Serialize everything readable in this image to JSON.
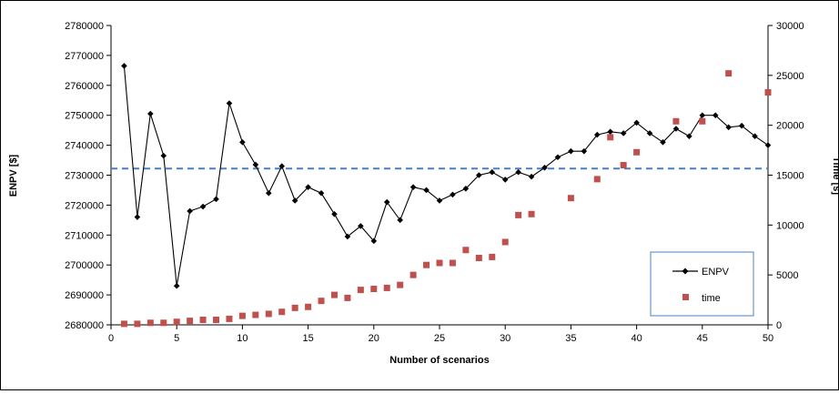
{
  "chart_data": {
    "type": "line",
    "title": "",
    "xlabel": "Number of scenarios",
    "ylabel": "ENPV [$]",
    "y2label": "Time [s]",
    "xlim": [
      0,
      50
    ],
    "ylim": [
      2680000,
      2780000
    ],
    "y2lim": [
      0,
      30000
    ],
    "x_ticks": [
      "0",
      "5",
      "10",
      "15",
      "20",
      "25",
      "30",
      "35",
      "40",
      "45",
      "50"
    ],
    "y_ticks": [
      "2680000",
      "2690000",
      "2700000",
      "2710000",
      "2720000",
      "2730000",
      "2740000",
      "2750000",
      "2760000",
      "2770000",
      "2780000"
    ],
    "y2_ticks": [
      "0",
      "5000",
      "10000",
      "15000",
      "20000",
      "25000",
      "30000"
    ],
    "legend_position": "bottom-right",
    "grid": false,
    "reference_line": {
      "y": 2732200,
      "color": "#4a7fc1",
      "style": "dashed"
    },
    "series": [
      {
        "name": "ENPV",
        "axis": "left",
        "kind": "line-diamond",
        "color": "#000000",
        "x": [
          1,
          2,
          3,
          4,
          5,
          6,
          7,
          8,
          9,
          10,
          11,
          12,
          13,
          14,
          15,
          16,
          17,
          18,
          19,
          20,
          21,
          22,
          23,
          24,
          25,
          26,
          27,
          28,
          29,
          30,
          31,
          32,
          33,
          34,
          35,
          36,
          37,
          38,
          39,
          40,
          41,
          42,
          43,
          44,
          45,
          46,
          47,
          48,
          49,
          50
        ],
        "y": [
          2766500,
          2716000,
          2750500,
          2736500,
          2693000,
          2718000,
          2719500,
          2722000,
          2754000,
          2741000,
          2733500,
          2724000,
          2733000,
          2721500,
          2726000,
          2724000,
          2717000,
          2709500,
          2713000,
          2708000,
          2721000,
          2715000,
          2726000,
          2725000,
          2721500,
          2723500,
          2725500,
          2730000,
          2731000,
          2728500,
          2731000,
          2729500,
          2732500,
          2736000,
          2738000,
          2738000,
          2743500,
          2744500,
          2744000,
          2747500,
          2744000,
          2741000,
          2745500,
          2743000,
          2750000,
          2750000,
          2746000,
          2746500,
          2743000,
          2740000
        ]
      },
      {
        "name": "time",
        "axis": "right",
        "kind": "scatter-square",
        "color": "#c0504d",
        "x": [
          1,
          2,
          3,
          4,
          5,
          6,
          7,
          8,
          9,
          10,
          11,
          12,
          13,
          14,
          15,
          16,
          17,
          18,
          19,
          20,
          21,
          22,
          23,
          24,
          25,
          26,
          27,
          28,
          29,
          30,
          31,
          32,
          35,
          37,
          38,
          39,
          40,
          43,
          45,
          47,
          50
        ],
        "y": [
          100,
          100,
          200,
          200,
          300,
          400,
          500,
          500,
          600,
          900,
          1000,
          1100,
          1300,
          1700,
          1800,
          2400,
          3000,
          2700,
          3500,
          3600,
          3700,
          4000,
          5000,
          6000,
          6200,
          6200,
          7500,
          6700,
          6800,
          8300,
          11000,
          11100,
          12700,
          14600,
          18800,
          16000,
          17300,
          20400,
          20400,
          25200,
          23300
        ]
      }
    ]
  }
}
